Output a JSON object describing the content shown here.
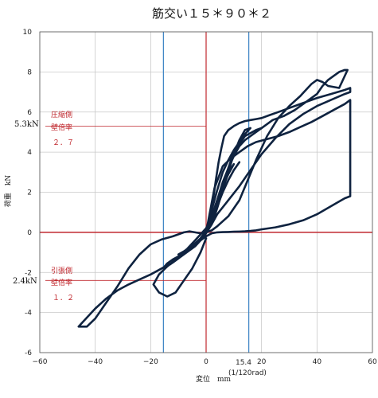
{
  "chart_data": {
    "type": "line",
    "title": "筋交い１５＊９０＊２",
    "xlabel": "変位　mm",
    "ylabel": "荷重　kN",
    "xlim": [
      -60,
      60
    ],
    "ylim": [
      -6,
      10
    ],
    "xticks": [
      -60,
      -40,
      -20,
      0,
      20,
      40,
      60
    ],
    "yticks": [
      -6,
      -4,
      -2,
      0,
      2,
      4,
      6,
      8,
      10
    ],
    "grid": true,
    "xtick_labels": [
      "−60",
      "−40",
      "−20",
      "0",
      "20",
      "40",
      "60"
    ],
    "ytick_labels": [
      "-6",
      "-4",
      "-2",
      "0",
      "2",
      "4",
      "6",
      "8",
      "10"
    ],
    "vlines": [
      {
        "x": 0,
        "color": "#c0282e"
      },
      {
        "x": 15.4,
        "color": "#3a82c4"
      },
      {
        "x": -15.4,
        "color": "#3a82c4"
      }
    ],
    "hlines": [
      {
        "y": 0,
        "color": "#c0282e"
      },
      {
        "y": 5.3,
        "color": "#c0282e"
      },
      {
        "y": -2.4,
        "color": "#c0282e"
      }
    ],
    "annotations": {
      "x_marker_value": "15.4",
      "x_marker_unit": "(1/120rad)",
      "comp_value": "5.3kN",
      "comp_side": "圧縮側",
      "comp_ratio_label": "壁倍率",
      "comp_ratio": "２．７",
      "tens_value": "2.4kN",
      "tens_side": "引張側",
      "tens_ratio_label": "壁倍率",
      "tens_ratio": "１．２"
    },
    "series": [
      {
        "color": "#0f2340",
        "x": [
          0,
          0.5,
          1.5,
          2.5,
          3.5,
          4.5,
          5.5,
          6.5,
          8,
          10,
          12,
          14,
          16,
          18,
          20,
          23,
          26,
          30,
          35,
          40,
          45,
          50,
          52,
          52,
          50,
          45,
          40,
          35,
          30,
          25,
          20,
          16,
          12,
          8,
          4,
          2,
          0,
          -2,
          -4,
          -8,
          -12,
          -16,
          -20,
          -24,
          -28,
          -32,
          -36,
          -40,
          -44,
          -46,
          -43,
          -40,
          -36,
          -32,
          -28,
          -24,
          -20,
          -16,
          -12,
          -10,
          -8,
          -6,
          -4,
          -2,
          0,
          2,
          4,
          6,
          8,
          10,
          14,
          18,
          20,
          22,
          24,
          28,
          32,
          36,
          40,
          42,
          44,
          46,
          48,
          50,
          51,
          48,
          44,
          42,
          40,
          38,
          36,
          34,
          30,
          26,
          22,
          18,
          15,
          12,
          8,
          4,
          2,
          0
        ],
        "y": [
          0,
          0.3,
          0.8,
          1.6,
          2.6,
          3.5,
          4.2,
          4.8,
          5.1,
          5.3,
          5.45,
          5.55,
          5.6,
          5.65,
          5.7,
          5.85,
          6.0,
          6.2,
          6.45,
          6.7,
          6.9,
          7.1,
          7.2,
          7.0,
          6.9,
          6.6,
          6.3,
          5.9,
          5.4,
          4.7,
          3.9,
          3.1,
          2.3,
          1.6,
          0.9,
          0.4,
          0.0,
          -0.4,
          -0.7,
          -1.1,
          -1.5,
          -1.8,
          -2.1,
          -2.35,
          -2.6,
          -2.9,
          -3.3,
          -3.8,
          -4.4,
          -4.7,
          -4.7,
          -4.3,
          -3.5,
          -2.7,
          -1.8,
          -1.1,
          -0.6,
          -0.35,
          -0.2,
          -0.1,
          0.0,
          0.05,
          0.0,
          -0.05,
          0.0,
          0.5,
          1.4,
          2.3,
          3.2,
          4.0,
          4.8,
          5.1,
          5.2,
          5.4,
          5.6,
          5.8,
          6.1,
          6.5,
          6.9,
          7.3,
          7.6,
          7.8,
          8.0,
          8.1,
          8.1,
          7.2,
          7.3,
          7.5,
          7.6,
          7.4,
          7.1,
          6.8,
          6.3,
          5.7,
          4.8,
          3.6,
          2.6,
          1.6,
          0.8,
          0.3,
          0.1,
          0.0
        ]
      },
      {
        "color": "#0f2340",
        "x": [
          0,
          3,
          6,
          9,
          12,
          15,
          18,
          22,
          26,
          30,
          34,
          38,
          42,
          46,
          50,
          52,
          52,
          50,
          45,
          40,
          35,
          30,
          25,
          20,
          18,
          16,
          14,
          12,
          10,
          8,
          6,
          4,
          2,
          0,
          -2,
          -5,
          -8,
          -11,
          -14,
          -17,
          -19,
          -17,
          -14,
          -11,
          -8,
          -5,
          -2,
          0
        ],
        "y": [
          0,
          2.2,
          3.3,
          3.7,
          4.0,
          4.3,
          4.5,
          4.65,
          4.8,
          5.0,
          5.25,
          5.5,
          5.8,
          6.1,
          6.4,
          6.6,
          1.8,
          1.7,
          1.3,
          0.9,
          0.6,
          0.4,
          0.25,
          0.15,
          0.1,
          0.07,
          0.05,
          0.04,
          0.03,
          0.02,
          0.01,
          0.0,
          -0.05,
          -0.2,
          -0.4,
          -0.7,
          -1.0,
          -1.35,
          -1.7,
          -2.1,
          -2.6,
          -3.0,
          -3.2,
          -3.0,
          -2.4,
          -1.8,
          -1.0,
          -0.3
        ]
      },
      {
        "color": "#0f2340",
        "x": [
          0,
          2,
          4,
          6,
          8,
          10,
          12,
          14,
          16,
          14,
          12,
          10,
          8,
          6,
          4,
          2,
          0,
          -2,
          -4,
          -6,
          -8,
          -10,
          -12,
          -14,
          -15,
          -13,
          -10,
          -8,
          -6,
          -4,
          -2,
          0,
          2,
          4,
          6,
          8,
          10,
          12,
          14,
          16,
          18,
          20
        ],
        "y": [
          0,
          1.1,
          2.1,
          3.0,
          3.6,
          4.1,
          4.5,
          4.9,
          5.2,
          5.1,
          4.6,
          3.9,
          3.0,
          2.1,
          1.2,
          0.4,
          -0.05,
          -0.4,
          -0.6,
          -0.8,
          -1.0,
          -1.2,
          -1.35,
          -1.55,
          -1.7,
          -1.6,
          -1.3,
          -1.0,
          -0.7,
          -0.4,
          -0.1,
          0.2,
          0.8,
          1.6,
          2.5,
          3.2,
          3.8,
          4.3,
          4.6,
          4.8,
          5.0,
          5.2
        ]
      },
      {
        "color": "#0f2340",
        "x": [
          0,
          2,
          4,
          6,
          8,
          10,
          8,
          6,
          4,
          2,
          0,
          -2,
          -4,
          -6,
          -8,
          -10,
          -8,
          -6,
          -4,
          -2,
          0,
          2,
          4,
          6,
          8,
          10,
          12
        ],
        "y": [
          0,
          0.8,
          1.6,
          2.3,
          2.9,
          3.4,
          3.0,
          2.4,
          1.6,
          0.8,
          0.1,
          -0.3,
          -0.55,
          -0.75,
          -0.95,
          -1.1,
          -1.0,
          -0.8,
          -0.55,
          -0.3,
          0.0,
          0.6,
          1.3,
          2.0,
          2.6,
          3.1,
          3.5
        ]
      }
    ]
  }
}
